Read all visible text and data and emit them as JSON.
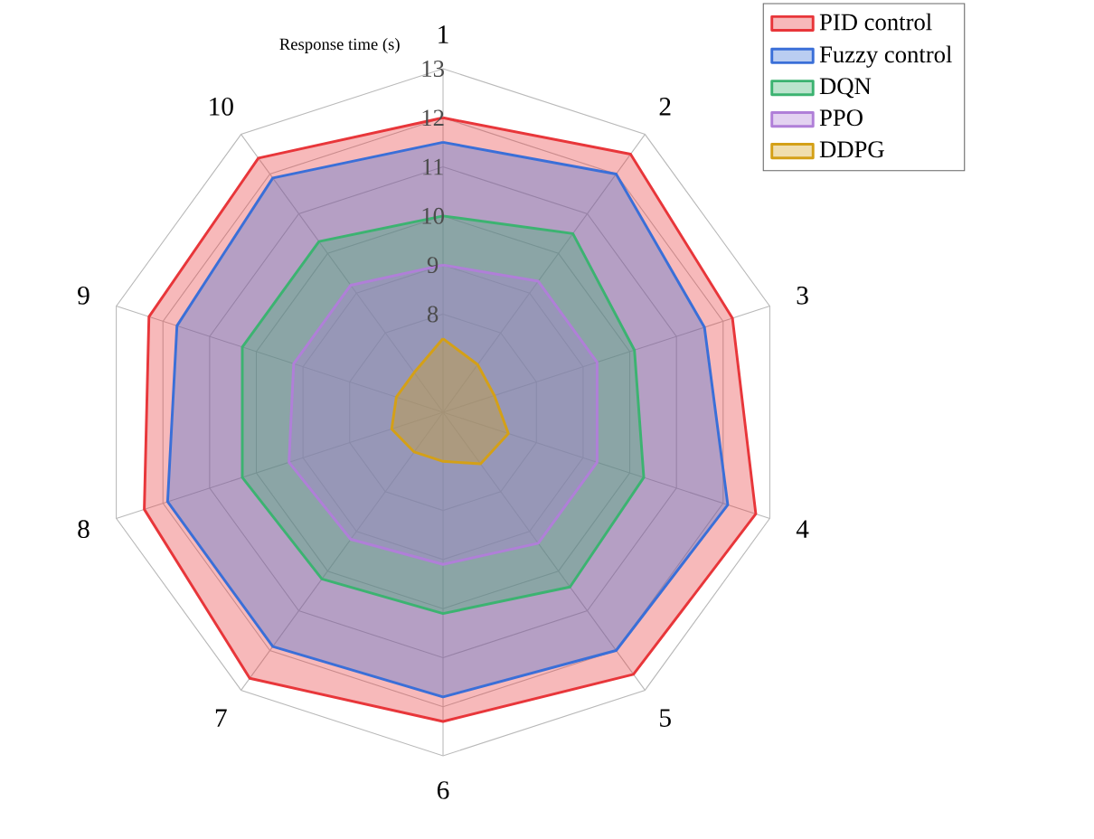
{
  "chart_data": {
    "type": "radar",
    "ylabel": "Response time (s)",
    "categories": [
      "1",
      "2",
      "3",
      "4",
      "5",
      "6",
      "7",
      "8",
      "9",
      "10"
    ],
    "ylim": [
      6,
      13
    ],
    "yticks": [
      8,
      9,
      10,
      11,
      12,
      13
    ],
    "grid": true,
    "legend": "top right",
    "series": [
      {
        "name": "PID control",
        "color": "#e8363a",
        "values": [
          12.0,
          12.5,
          12.2,
          12.7,
          12.6,
          12.3,
          12.7,
          12.4,
          12.3,
          12.4
        ]
      },
      {
        "name": "Fuzzy control",
        "color": "#3a6fd8",
        "values": [
          11.5,
          12.0,
          11.6,
          12.1,
          12.0,
          11.8,
          11.9,
          11.9,
          11.7,
          11.9
        ]
      },
      {
        "name": "DQN",
        "color": "#3cb371",
        "values": [
          10.0,
          10.5,
          10.1,
          10.3,
          10.4,
          10.1,
          10.2,
          10.3,
          10.3,
          10.3
        ]
      },
      {
        "name": "PPO",
        "color": "#b07fd8",
        "values": [
          9.0,
          9.3,
          9.3,
          9.3,
          9.3,
          9.1,
          9.2,
          9.3,
          9.2,
          9.2
        ]
      },
      {
        "name": "DDPG",
        "color": "#d4a017",
        "values": [
          7.5,
          7.2,
          7.1,
          7.4,
          7.3,
          7.0,
          7.0,
          7.1,
          7.0,
          7.0
        ]
      }
    ]
  }
}
